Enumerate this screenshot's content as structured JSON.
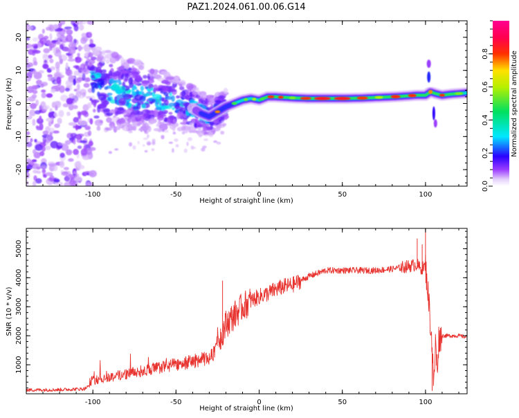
{
  "title": "PAZ1.2024.061.00.06.G14",
  "colors": {
    "snr_line": "#e8322e",
    "axis": "#000000",
    "background": "#ffffff"
  },
  "chart_data": [
    {
      "type": "heatmap",
      "xlabel": "Height of straight line (km)",
      "ylabel": "Frequency (Hz)",
      "xlim": [
        -140,
        125
      ],
      "ylim": [
        -25,
        25
      ],
      "xticks": [
        -100,
        -50,
        0,
        50,
        100
      ],
      "yticks": [
        -20,
        -10,
        0,
        10,
        20
      ],
      "grid": false,
      "ridge": {
        "x": [
          -100,
          -90,
          -80,
          -70,
          -60,
          -50,
          -40,
          -35,
          -30,
          -25,
          -20,
          -15,
          -10,
          -5,
          0,
          5,
          10,
          20,
          30,
          40,
          50,
          60,
          70,
          80,
          90,
          95,
          100,
          103,
          106,
          110,
          115,
          120,
          125
        ],
        "y": [
          5,
          4,
          3,
          2,
          1,
          0,
          -1.5,
          -3,
          -4,
          -2.5,
          -1,
          0,
          1,
          1.5,
          1,
          2,
          2,
          1.7,
          1.5,
          1.5,
          1.5,
          1.6,
          1.8,
          2,
          2.3,
          2.5,
          2.5,
          3.5,
          3,
          2.5,
          2.8,
          3,
          3.2
        ]
      },
      "colorbar": {
        "label": "Normalized spectral amplitude",
        "range": [
          0,
          1
        ],
        "ticks": [
          "0.0",
          "0.2",
          "0.4",
          "0.6",
          "0.8"
        ],
        "stops": [
          {
            "v": 0.0,
            "c": "#ffffff"
          },
          {
            "v": 0.04,
            "c": "#e6d2fa"
          },
          {
            "v": 0.1,
            "c": "#9a3dff"
          },
          {
            "v": 0.18,
            "c": "#2a00ff"
          },
          {
            "v": 0.3,
            "c": "#00e8ff"
          },
          {
            "v": 0.45,
            "c": "#00e060"
          },
          {
            "v": 0.6,
            "c": "#b8f000"
          },
          {
            "v": 0.7,
            "c": "#ffe000"
          },
          {
            "v": 0.8,
            "c": "#ff3000"
          },
          {
            "v": 0.9,
            "c": "#ff0050"
          },
          {
            "v": 1.0,
            "c": "#ff0090"
          }
        ]
      }
    },
    {
      "type": "line",
      "xlabel": "Height of straight line (km)",
      "ylabel": "SNR (10 * v/v)",
      "xlim": [
        -140,
        125
      ],
      "ylim": [
        0,
        5700
      ],
      "xticks": [
        -100,
        -50,
        0,
        50,
        100
      ],
      "yticks": [
        1000,
        2000,
        3000,
        4000,
        5000
      ],
      "grid": false,
      "series": [
        {
          "color": "#e8322e",
          "x": [
            -140,
            -120,
            -105,
            -100,
            -90,
            -80,
            -70,
            -60,
            -50,
            -40,
            -30,
            -27,
            -25,
            -23,
            -20,
            -15,
            -10,
            -5,
            0,
            5,
            10,
            15,
            20,
            25,
            30,
            35,
            40,
            50,
            60,
            70,
            80,
            85,
            90,
            95,
            97,
            100,
            102,
            104,
            105,
            106,
            107,
            108,
            110,
            115,
            120,
            125
          ],
          "y": [
            130,
            140,
            170,
            350,
            450,
            550,
            650,
            750,
            850,
            950,
            1050,
            1250,
            1800,
            2000,
            2400,
            2700,
            3000,
            3200,
            3350,
            3450,
            3600,
            3700,
            3750,
            3900,
            4050,
            4150,
            4250,
            4250,
            4250,
            4250,
            4300,
            4350,
            4400,
            4450,
            4300,
            4400,
            3200,
            1600,
            200,
            1800,
            800,
            1900,
            2000,
            2000,
            2000,
            1950
          ],
          "spikes": [
            {
              "x": -22,
              "y": 3900
            },
            {
              "x": -15,
              "y": 3000
            },
            {
              "x": 95,
              "y": 5350
            },
            {
              "x": 98,
              "y": 5150
            },
            {
              "x": 100,
              "y": 5700
            },
            {
              "x": 104,
              "y": 100
            }
          ]
        }
      ]
    }
  ]
}
